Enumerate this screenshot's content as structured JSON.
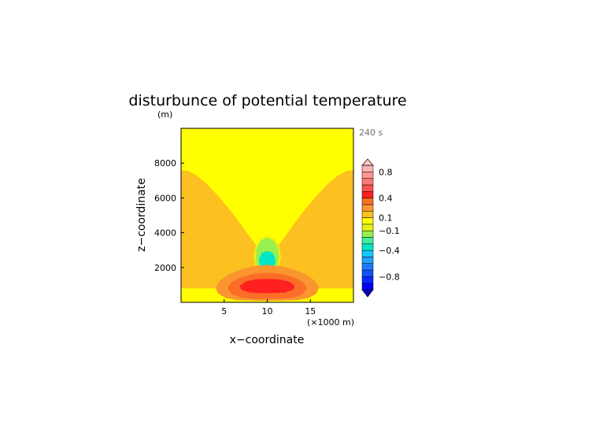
{
  "chart_data": {
    "type": "contour",
    "title": "disturbunce of potential temperature",
    "yunit": "(m)",
    "time_label": "240 s",
    "xlabel": "x−coordinate",
    "ylabel": "z−coordinate",
    "xunit": "(×1000 m)",
    "xlim": [
      0,
      20
    ],
    "ylim": [
      0,
      10000
    ],
    "xticks": [
      5,
      10,
      15
    ],
    "yticks": [
      2000,
      4000,
      6000,
      8000
    ],
    "xtick_labels": [
      "5",
      "10",
      "15"
    ],
    "ytick_labels": [
      "2000",
      "4000",
      "6000",
      "8000"
    ],
    "levels": [
      {
        "range": "-1.0 to -0.9",
        "color": "#0000ff"
      },
      {
        "range": "-0.9 to -0.8",
        "color": "#0a28ff"
      },
      {
        "range": "-0.8 to -0.7",
        "color": "#1450ff"
      },
      {
        "range": "-0.7 to -0.6",
        "color": "#1e78ff"
      },
      {
        "range": "-0.6 to -0.5",
        "color": "#28a0ff"
      },
      {
        "range": "-0.5 to -0.4",
        "color": "#14c8ff"
      },
      {
        "range": "-0.4 to -0.3",
        "color": "#00e6c8"
      },
      {
        "range": "-0.3 to -0.2",
        "color": "#3cf0a0"
      },
      {
        "range": "-0.2 to -0.1",
        "color": "#96f050"
      },
      {
        "range": "-0.1 to 0.0",
        "color": "#e6f014"
      },
      {
        "range": "0.0 to 0.1",
        "color": "#ffff00"
      },
      {
        "range": "0.1 to 0.2",
        "color": "#fcc020"
      },
      {
        "range": "0.2 to 0.3",
        "color": "#fa9630"
      },
      {
        "range": "0.3 to 0.4",
        "color": "#fa6e28"
      },
      {
        "range": "0.4 to 0.5",
        "color": "#ff2020"
      },
      {
        "range": "0.5 to 0.6",
        "color": "#ff5050"
      },
      {
        "range": "0.6 to 0.7",
        "color": "#ff7878"
      },
      {
        "range": "0.7 to 0.8",
        "color": "#ff9696"
      },
      {
        "range": "0.8 to 0.9",
        "color": "#ffb4b4"
      }
    ],
    "under_color": "#0000c8",
    "over_color": "#ffc8c8",
    "colorbar_labels": [
      {
        "value": 0.8,
        "text": "0.8"
      },
      {
        "value": 0.4,
        "text": "0.4"
      },
      {
        "value": 0.1,
        "text": "0.1"
      },
      {
        "value": -0.1,
        "text": "−0.1"
      },
      {
        "value": -0.4,
        "text": "−0.4"
      },
      {
        "value": -0.8,
        "text": "−0.8"
      }
    ],
    "regions": [
      {
        "level": "0.1 to 0.2",
        "points": [
          [
            0,
            7600
          ],
          [
            0.8,
            7550
          ],
          [
            1.8,
            7300
          ],
          [
            3,
            6800
          ],
          [
            4.5,
            6000
          ],
          [
            6,
            5100
          ],
          [
            7.2,
            4300
          ],
          [
            8.2,
            3600
          ],
          [
            9,
            3100
          ],
          [
            10,
            2900
          ],
          [
            11,
            3100
          ],
          [
            11.8,
            3600
          ],
          [
            12.8,
            4300
          ],
          [
            14,
            5100
          ],
          [
            15.5,
            6000
          ],
          [
            17,
            6800
          ],
          [
            18.2,
            7300
          ],
          [
            19.2,
            7550
          ],
          [
            20,
            7600
          ],
          [
            20,
            800
          ],
          [
            0,
            800
          ]
        ]
      },
      {
        "level": "0.0 to 0.1",
        "points": [
          [
            0,
            650
          ],
          [
            2,
            600
          ],
          [
            4,
            400
          ],
          [
            5,
            220
          ],
          [
            6,
            100
          ],
          [
            7,
            0
          ],
          [
            0,
            0
          ]
        ]
      },
      {
        "level": "0.0 to 0.1",
        "points": [
          [
            20,
            650
          ],
          [
            18,
            600
          ],
          [
            16,
            400
          ],
          [
            15,
            220
          ],
          [
            14,
            100
          ],
          [
            13,
            0
          ],
          [
            20,
            0
          ]
        ]
      },
      {
        "level": "-0.1 to 0.0",
        "points": [
          [
            10,
            3800
          ],
          [
            10.8,
            3650
          ],
          [
            11.4,
            3200
          ],
          [
            11.6,
            2600
          ],
          [
            11.4,
            2100
          ],
          [
            10.8,
            1900
          ],
          [
            10,
            1850
          ],
          [
            9.2,
            1900
          ],
          [
            8.6,
            2100
          ],
          [
            8.4,
            2600
          ],
          [
            8.6,
            3200
          ],
          [
            9.2,
            3650
          ]
        ]
      },
      {
        "level": "-0.2 to -0.1",
        "points": [
          [
            10,
            3700
          ],
          [
            10.7,
            3550
          ],
          [
            11.2,
            3150
          ],
          [
            11.35,
            2600
          ],
          [
            11.2,
            2150
          ],
          [
            10.7,
            1980
          ],
          [
            10,
            1950
          ],
          [
            9.3,
            1980
          ],
          [
            8.8,
            2150
          ],
          [
            8.65,
            2600
          ],
          [
            8.8,
            3150
          ],
          [
            9.3,
            3550
          ]
        ]
      },
      {
        "level": "-0.4 to -0.3",
        "points": [
          [
            10,
            2950
          ],
          [
            10.6,
            2850
          ],
          [
            10.9,
            2550
          ],
          [
            10.95,
            2300
          ],
          [
            10.75,
            2050
          ],
          [
            10,
            1950
          ],
          [
            9.25,
            2050
          ],
          [
            9.05,
            2300
          ],
          [
            9.1,
            2550
          ],
          [
            9.4,
            2850
          ]
        ]
      },
      {
        "level": "0.2 to 0.3",
        "points": [
          [
            10,
            2150
          ],
          [
            11.6,
            2080
          ],
          [
            13,
            1900
          ],
          [
            14.5,
            1600
          ],
          [
            15.5,
            1250
          ],
          [
            16,
            850
          ],
          [
            15.7,
            500
          ],
          [
            14.8,
            250
          ],
          [
            13.5,
            120
          ],
          [
            10,
            80
          ],
          [
            6.5,
            120
          ],
          [
            5.2,
            250
          ],
          [
            4.3,
            500
          ],
          [
            4,
            850
          ],
          [
            4.5,
            1250
          ],
          [
            5.5,
            1600
          ],
          [
            7,
            1900
          ],
          [
            8.4,
            2080
          ]
        ]
      },
      {
        "level": "0.3 to 0.4",
        "points": [
          [
            10,
            1700
          ],
          [
            11.5,
            1650
          ],
          [
            13,
            1450
          ],
          [
            14.2,
            1150
          ],
          [
            14.6,
            800
          ],
          [
            14.1,
            450
          ],
          [
            13,
            260
          ],
          [
            11.5,
            200
          ],
          [
            10,
            190
          ],
          [
            8.5,
            200
          ],
          [
            7,
            260
          ],
          [
            5.9,
            450
          ],
          [
            5.4,
            800
          ],
          [
            5.8,
            1150
          ],
          [
            7,
            1450
          ],
          [
            8.5,
            1650
          ]
        ]
      },
      {
        "level": "0.4 to 0.5",
        "points": [
          [
            10,
            1350
          ],
          [
            11.3,
            1320
          ],
          [
            12.5,
            1200
          ],
          [
            13.2,
            950
          ],
          [
            13,
            720
          ],
          [
            12,
            560
          ],
          [
            10,
            520
          ],
          [
            8,
            560
          ],
          [
            7,
            720
          ],
          [
            6.8,
            950
          ],
          [
            7.5,
            1200
          ],
          [
            8.7,
            1320
          ]
        ]
      }
    ]
  }
}
